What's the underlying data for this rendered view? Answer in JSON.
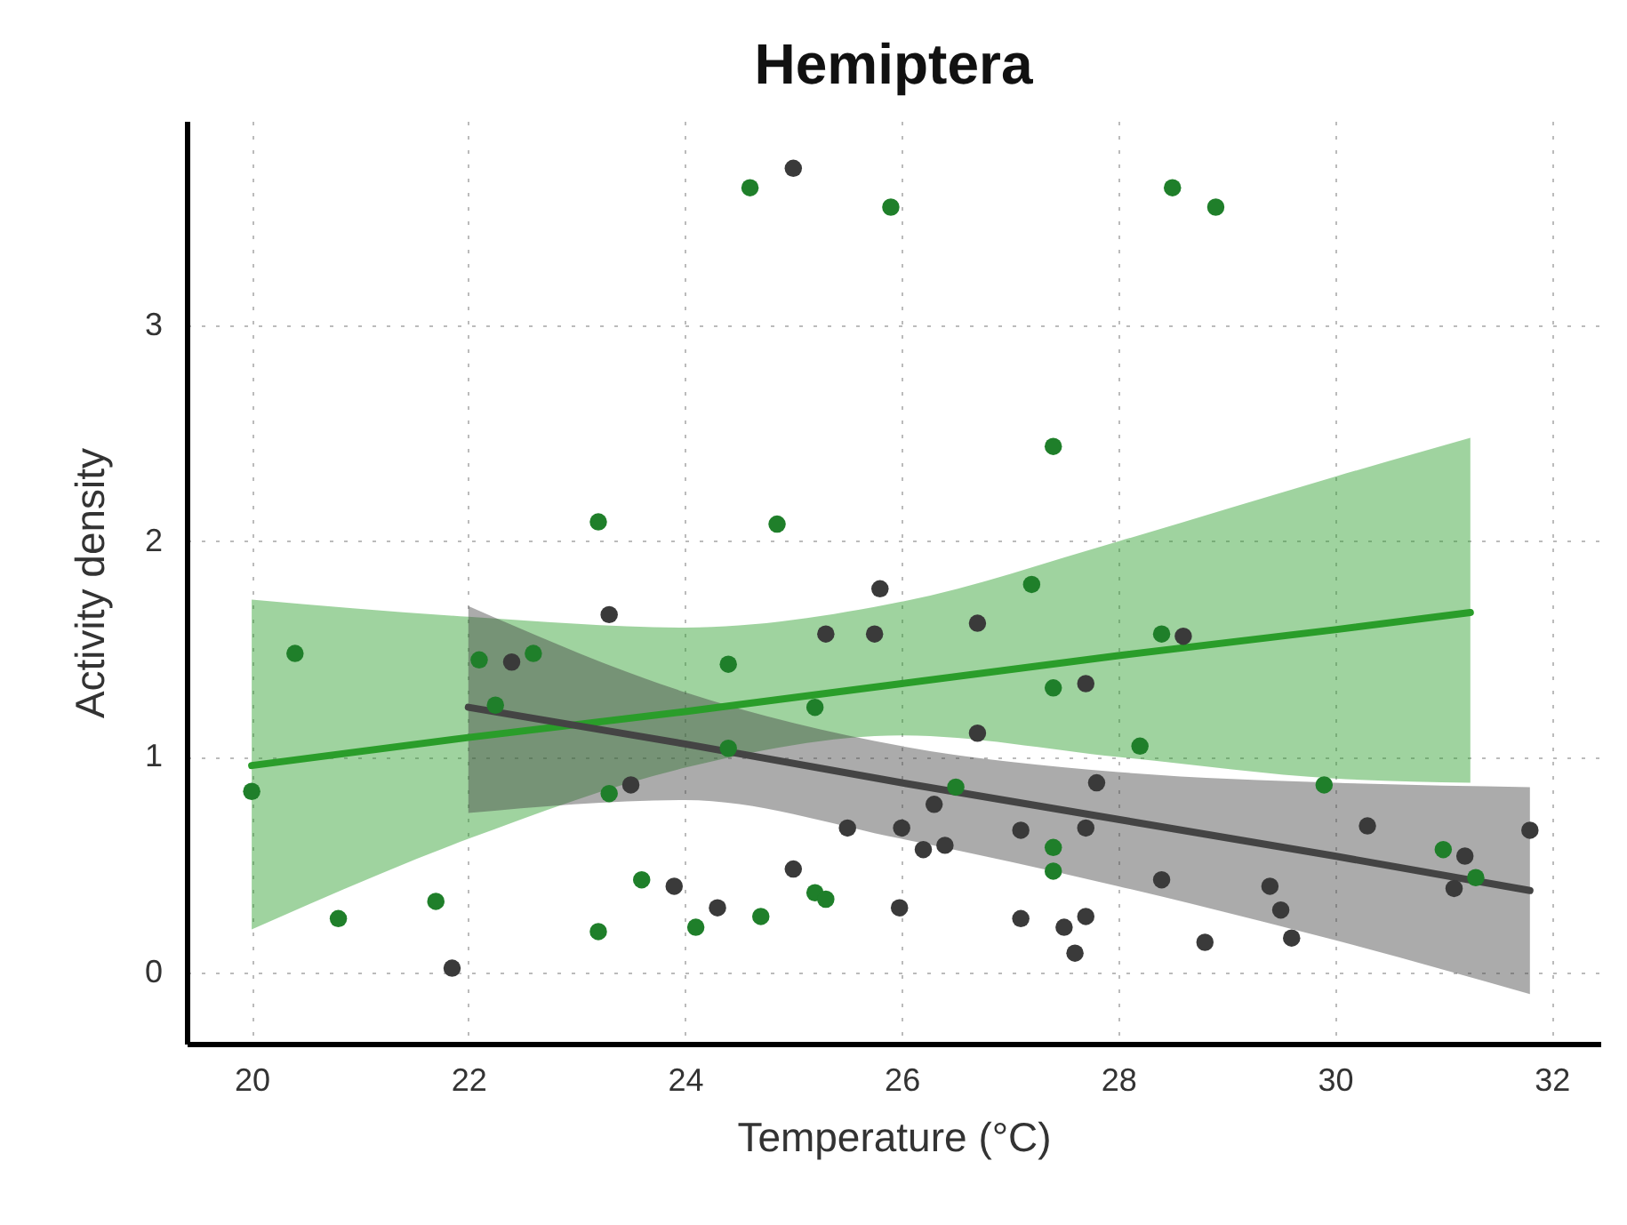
{
  "chart_data": {
    "type": "scatter",
    "title": "Hemiptera",
    "xlabel": "Temperature (°C)",
    "ylabel": "Activity density",
    "xlim": [
      19.4,
      32.45
    ],
    "ylim": [
      -0.33,
      3.95
    ],
    "xticks": [
      20,
      22,
      24,
      26,
      28,
      30,
      32
    ],
    "yticks": [
      0,
      1,
      2,
      3
    ],
    "grid": true,
    "marker": "circle",
    "series": [
      {
        "type": "line",
        "marker": "none",
        "color": "#2a9d2a",
        "x": [
          20,
          22,
          24,
          26,
          28,
          30,
          31.25
        ],
        "values": [
          0.96,
          1.09,
          1.21,
          1.34,
          1.47,
          1.59,
          1.67
        ],
        "lower": [
          0.2,
          0.62,
          0.95,
          1.1,
          1.0,
          0.9,
          0.88
        ],
        "upper": [
          1.73,
          1.65,
          1.6,
          1.72,
          2.0,
          2.3,
          2.48
        ]
      },
      {
        "type": "line",
        "marker": "none",
        "color": "#444444",
        "x": [
          22,
          24,
          26,
          28,
          30,
          31.8
        ],
        "values": [
          1.23,
          1.06,
          0.88,
          0.71,
          0.54,
          0.38
        ],
        "lower": [
          0.74,
          0.8,
          0.62,
          0.4,
          0.15,
          -0.1
        ],
        "upper": [
          1.7,
          1.3,
          1.05,
          0.93,
          0.88,
          0.86
        ]
      },
      {
        "color": "#1f7f2a",
        "x": [
          20.0,
          20.4,
          20.8,
          21.7,
          22.1,
          22.25,
          22.6,
          23.2,
          23.2,
          23.3,
          23.6,
          24.1,
          24.4,
          24.4,
          24.6,
          24.7,
          24.85,
          25.2,
          25.2,
          25.3,
          25.9,
          26.5,
          27.2,
          27.4,
          27.4,
          27.4,
          27.4,
          28.2,
          28.4,
          28.5,
          28.9,
          29.9,
          31.0,
          31.3
        ],
        "values": [
          0.84,
          1.48,
          0.25,
          0.33,
          1.45,
          1.24,
          1.48,
          2.09,
          0.19,
          0.83,
          0.43,
          0.21,
          1.43,
          1.04,
          3.64,
          0.26,
          2.08,
          1.23,
          0.37,
          0.34,
          3.55,
          0.86,
          1.8,
          1.32,
          2.44,
          0.58,
          0.47,
          1.05,
          1.57,
          3.64,
          3.55,
          0.87,
          0.57,
          0.44
        ]
      },
      {
        "color": "#3a3a3a",
        "x": [
          25.0,
          23.3,
          22.4,
          23.5,
          21.85,
          23.9,
          24.3,
          25.0,
          25.3,
          25.5,
          25.8,
          25.75,
          26.0,
          25.98,
          26.3,
          26.2,
          26.4,
          26.7,
          26.7,
          27.1,
          27.1,
          27.5,
          27.6,
          27.7,
          27.7,
          27.8,
          27.7,
          28.4,
          28.6,
          28.8,
          29.4,
          29.5,
          29.6,
          30.3,
          31.2,
          31.1,
          31.8
        ],
        "values": [
          3.73,
          1.66,
          1.44,
          0.87,
          0.02,
          0.4,
          0.3,
          0.48,
          1.57,
          0.67,
          1.78,
          1.57,
          0.67,
          0.3,
          0.78,
          0.57,
          0.59,
          1.62,
          1.11,
          0.66,
          0.25,
          0.21,
          0.09,
          0.26,
          1.34,
          0.88,
          0.67,
          0.43,
          1.56,
          0.14,
          0.4,
          0.29,
          0.16,
          0.68,
          0.54,
          0.39,
          0.66
        ]
      }
    ]
  }
}
